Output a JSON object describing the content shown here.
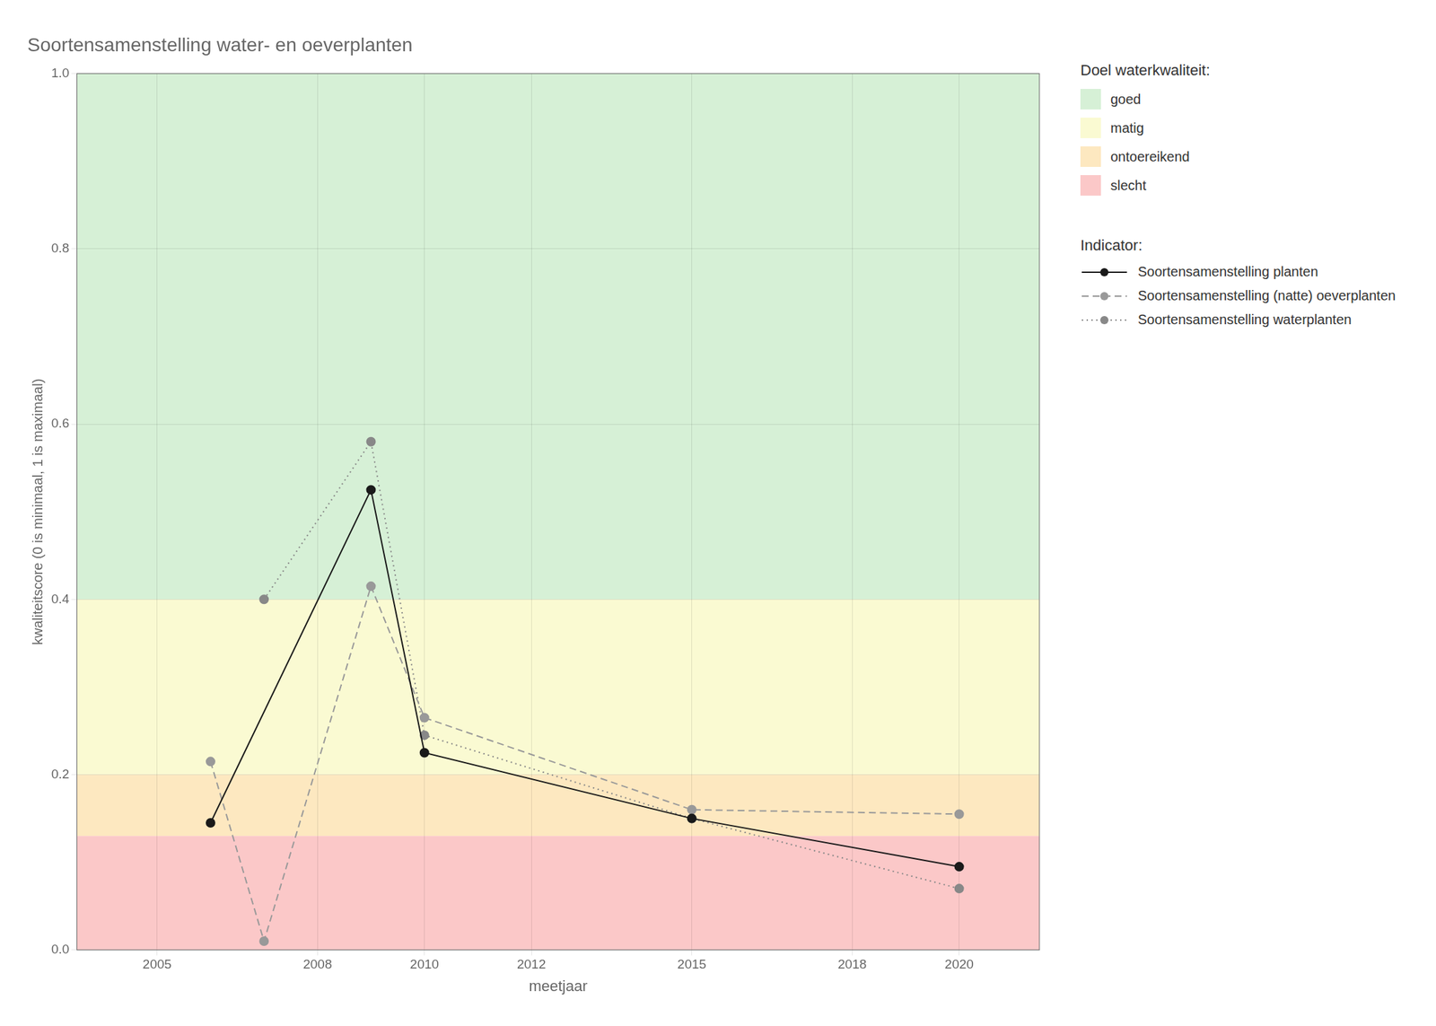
{
  "chart_data": {
    "type": "line",
    "title": "Soortensamenstelling water- en oeverplanten",
    "xlabel": "meetjaar",
    "ylabel": "kwaliteitscore (0 is minimaal, 1 is maximaal)",
    "xlim": [
      2003.5,
      2021.5
    ],
    "ylim": [
      0.0,
      1.0
    ],
    "xticks": [
      2005,
      2008,
      2010,
      2012,
      2015,
      2018,
      2020
    ],
    "yticks": [
      {
        "value": 0.0,
        "label": "0.0"
      },
      0.2,
      0.4,
      0.6,
      0.8,
      {
        "value": 1.0,
        "label": "1.0"
      }
    ],
    "grid": true,
    "legend": "right",
    "bands_title": "Doel waterkwaliteit:",
    "bands": [
      {
        "name": "goed",
        "from": 0.4,
        "to": 1.0,
        "color": "#d6f0d6"
      },
      {
        "name": "matig",
        "from": 0.2,
        "to": 0.4,
        "color": "#fafad2"
      },
      {
        "name": "ontoereikend",
        "from": 0.13,
        "to": 0.2,
        "color": "#fde8c0"
      },
      {
        "name": "slecht",
        "from": 0.0,
        "to": 0.13,
        "color": "#fbc8c8"
      }
    ],
    "legend_title": "Indicator:",
    "series": [
      {
        "name": "Soortensamenstelling planten",
        "color": "#1a1a1a",
        "marker": "circle",
        "line_style": "solid",
        "x": [
          2006,
          2009,
          2010,
          2015,
          2020
        ],
        "values": [
          0.145,
          0.525,
          0.225,
          0.15,
          0.095
        ]
      },
      {
        "name": "Soortensamenstelling (natte) oeverplanten",
        "color": "#999999",
        "marker": "circle",
        "line_style": "dashed",
        "x": [
          2006,
          2007,
          2009,
          2010,
          2015,
          2020
        ],
        "values": [
          0.215,
          0.01,
          0.415,
          0.265,
          0.16,
          0.155
        ]
      },
      {
        "name": "Soortensamenstelling waterplanten",
        "color": "#888888",
        "marker": "circle",
        "line_style": "dotted",
        "x": [
          2007,
          2009,
          2010,
          2015,
          2020
        ],
        "values": [
          0.4,
          0.58,
          0.245,
          0.15,
          0.07
        ]
      }
    ]
  }
}
